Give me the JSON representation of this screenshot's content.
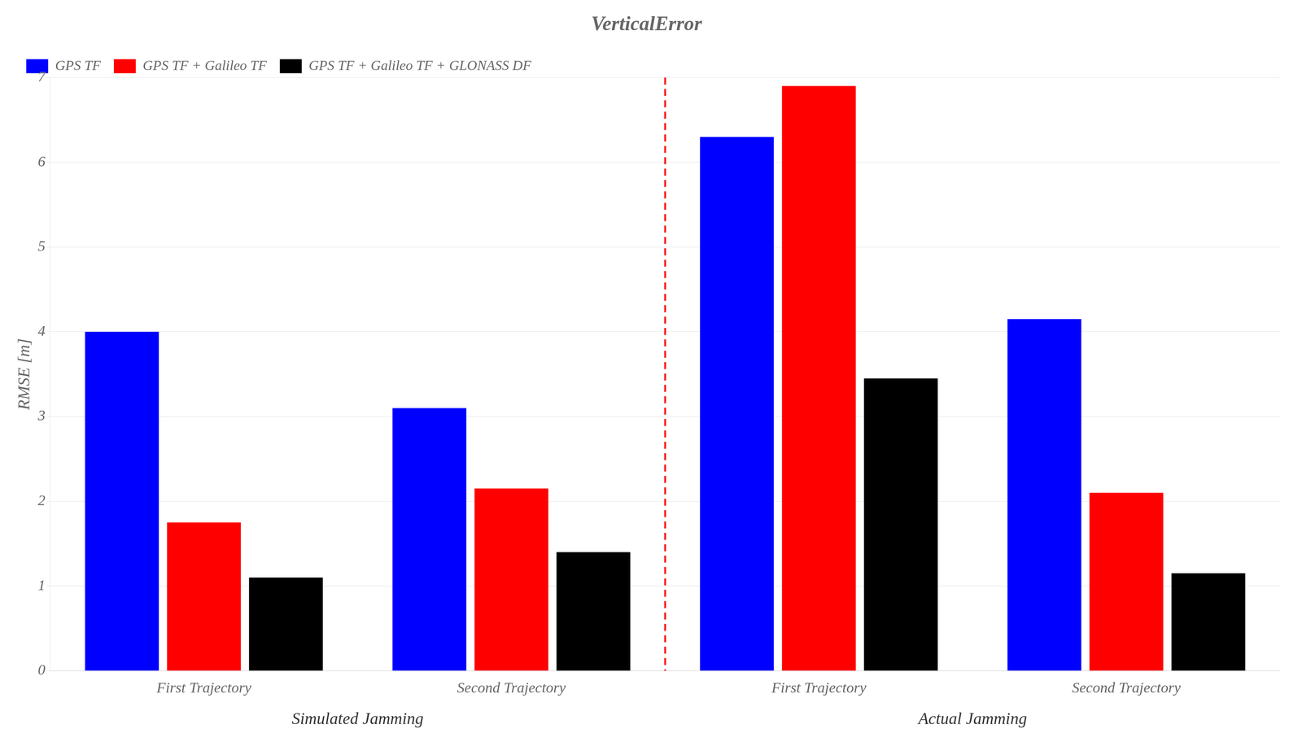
{
  "chart_data": {
    "type": "bar",
    "title": "VerticalError",
    "y_label": "RMSE [m]",
    "categories": [
      "First Trajectory",
      "Second Trajectory",
      "First Trajectory",
      "Second Trajectory"
    ],
    "annotations": [
      "Simulated Jamming",
      "Actual Jamming"
    ],
    "series": [
      {
        "name": "GPS TF",
        "color": "#0000FF",
        "values": [
          4.0,
          3.1,
          6.3,
          4.15
        ]
      },
      {
        "name": "GPS TF + Galileo TF",
        "color": "#FF0000",
        "values": [
          1.75,
          2.15,
          6.9,
          2.1
        ]
      },
      {
        "name": "GPS TF + Galileo TF + GLONASS DF",
        "color": "#000000",
        "values": [
          1.1,
          1.4,
          3.45,
          1.15
        ]
      }
    ],
    "ylim": [
      0,
      7
    ],
    "yticks": [
      0,
      1,
      2,
      3,
      4,
      5,
      6,
      7
    ],
    "grid": true,
    "legend": "upper left"
  }
}
